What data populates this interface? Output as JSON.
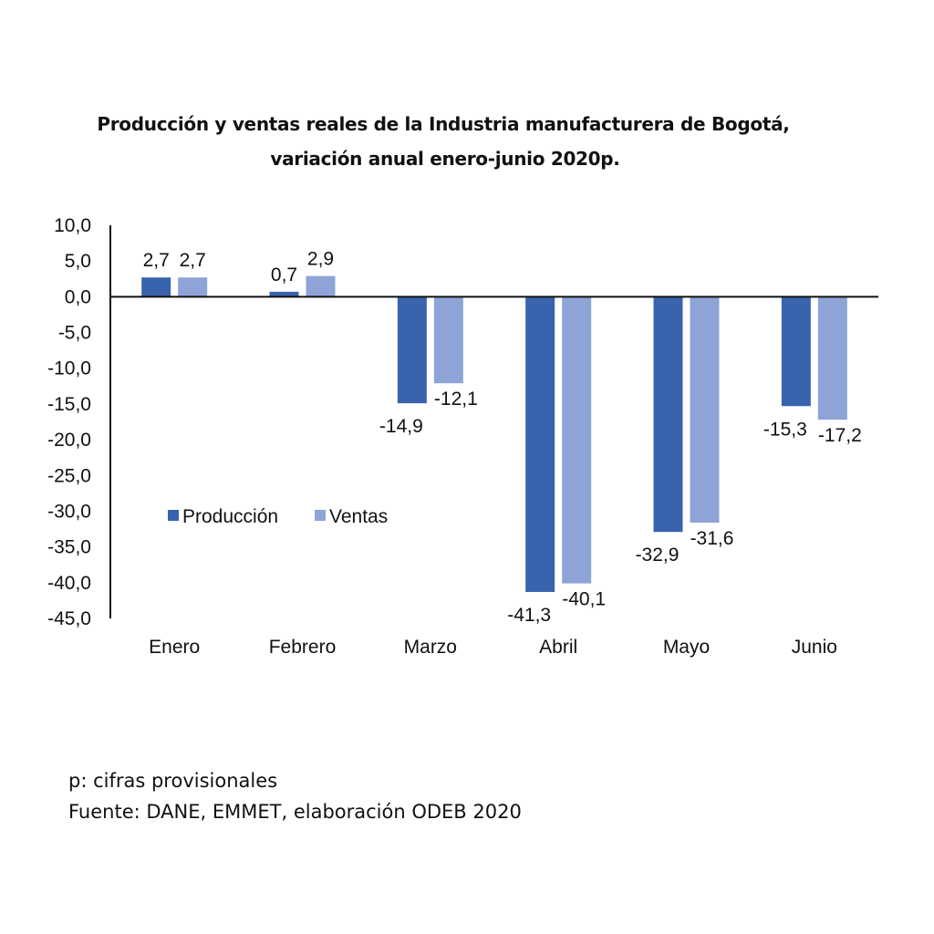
{
  "chart_data": {
    "type": "bar",
    "title": "Producción y ventas reales de la Industria manufacturera de Bogotá,",
    "subtitle": "variación anual enero-junio 2020p.",
    "xlabel": "",
    "ylabel": "",
    "ylim": [
      -45,
      10
    ],
    "yticks": [
      10,
      5,
      0,
      -5,
      -10,
      -15,
      -20,
      -25,
      -30,
      -35,
      -40,
      -45
    ],
    "ytick_labels": [
      "10,0",
      "5,0",
      "0,0",
      "-5,0",
      "-10,0",
      "-15,0",
      "-20,0",
      "-25,0",
      "-30,0",
      "-35,0",
      "-40,0",
      "-45,0"
    ],
    "grid": false,
    "legend_position": "lower-left inside plot",
    "categories": [
      "Enero",
      "Febrero",
      "Marzo",
      "Abril",
      "Mayo",
      "Junio"
    ],
    "series": [
      {
        "name": "Producción",
        "color": "#3A63AD",
        "values": [
          2.7,
          0.7,
          -14.9,
          -41.3,
          -32.9,
          -15.3
        ],
        "labels": [
          "2,7",
          "0,7",
          "-14,9",
          "-41,3",
          "-32,9",
          "-15,3"
        ]
      },
      {
        "name": "Ventas",
        "color": "#8EA3D6",
        "values": [
          2.7,
          2.9,
          -12.1,
          -40.1,
          -31.6,
          -17.2
        ],
        "labels": [
          "2,7",
          "2,9",
          "-12,1",
          "-40,1",
          "-31,6",
          "-17,2"
        ]
      }
    ]
  },
  "footnotes": {
    "note": "p: cifras provisionales",
    "source": "Fuente: DANE, EMMET, elaboración ODEB 2020"
  }
}
